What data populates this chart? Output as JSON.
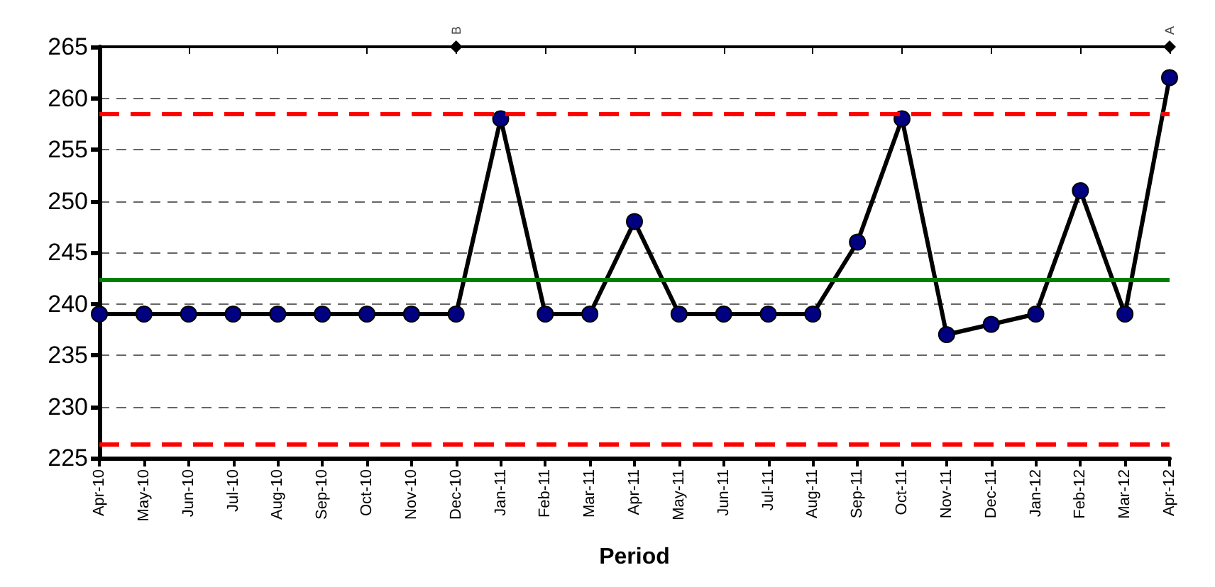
{
  "chart_data": {
    "type": "line",
    "xlabel": "Period",
    "categories": [
      "Apr-10",
      "May-10",
      "Jun-10",
      "Jul-10",
      "Aug-10",
      "Sep-10",
      "Oct-10",
      "Nov-10",
      "Dec-10",
      "Jan-11",
      "Feb-11",
      "Mar-11",
      "Apr-11",
      "May-11",
      "Jun-11",
      "Jul-11",
      "Aug-11",
      "Sep-11",
      "Oct-11",
      "Nov-11",
      "Dec-11",
      "Jan-12",
      "Feb-12",
      "Mar-12",
      "Apr-12"
    ],
    "series": [
      {
        "color": "#000080",
        "values": [
          239,
          239,
          239,
          239,
          239,
          239,
          239,
          239,
          239,
          258,
          239,
          239,
          248,
          239,
          239,
          239,
          239,
          246,
          258,
          237,
          238,
          239,
          251,
          239,
          262
        ]
      }
    ],
    "ylim": [
      225,
      265
    ],
    "yticks": [
      225,
      230,
      235,
      240,
      245,
      250,
      255,
      260,
      265
    ],
    "grid": "y",
    "marker": "circle",
    "line_style": "solid",
    "ref_lines": [
      {
        "axis": "y",
        "value": 258.5,
        "color": "#ff0000",
        "line_style": "dashed"
      },
      {
        "axis": "y",
        "value": 242.4,
        "color": "#008000",
        "line_style": "solid"
      },
      {
        "axis": "y",
        "value": 226.3,
        "color": "#ff0000",
        "line_style": "dashed"
      }
    ],
    "annotations": [
      {
        "text": "B",
        "x": "Dec-10",
        "y": 265
      },
      {
        "text": "A",
        "x": "Apr-12",
        "y": 265
      }
    ]
  }
}
